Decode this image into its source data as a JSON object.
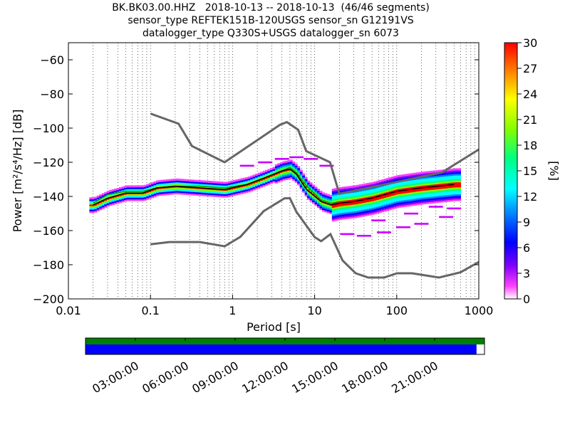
{
  "title": {
    "line1": "BK.BK03.00.HHZ   2018-10-13 -- 2018-10-13  (46/46 segments)",
    "line2": "sensor_type REFTEK151B-120USGS sensor_sn G12191VS",
    "line3": "datalogger_type Q330S+USGS datalogger_sn 6073"
  },
  "chart_data": {
    "type": "heatmap",
    "xlabel": "Period [s]",
    "ylabel": "Power [m²/s⁴/Hz] [dB]",
    "x_scale": "log",
    "xlim": [
      0.01,
      1000
    ],
    "ylim": [
      -200,
      -50
    ],
    "x_ticks": [
      {
        "value": 0.01,
        "label": "0.01"
      },
      {
        "value": 0.1,
        "label": "0.1"
      },
      {
        "value": 1,
        "label": "1"
      },
      {
        "value": 10,
        "label": "10"
      },
      {
        "value": 100,
        "label": "100"
      },
      {
        "value": 1000,
        "label": "1000"
      }
    ],
    "y_ticks": [
      {
        "value": -60,
        "label": "−60"
      },
      {
        "value": -80,
        "label": "−80"
      },
      {
        "value": -100,
        "label": "−100"
      },
      {
        "value": -120,
        "label": "−120"
      },
      {
        "value": -140,
        "label": "−140"
      },
      {
        "value": -160,
        "label": "−160"
      },
      {
        "value": -180,
        "label": "−180"
      },
      {
        "value": -200,
        "label": "−200"
      }
    ],
    "grid": "dotted-vertical",
    "colorbar": {
      "label": "[%]",
      "range": [
        0,
        30
      ],
      "ticks": [
        "0",
        "3",
        "6",
        "9",
        "12",
        "15",
        "18",
        "21",
        "24",
        "27",
        "30"
      ],
      "colormap": "pqlx"
    },
    "noise_model_color": "#666666",
    "nhnm": {
      "x": [
        0.1,
        0.22,
        0.32,
        0.8,
        3.8,
        4.6,
        6.3,
        7.9,
        15.4,
        20,
        354.8,
        1000
      ],
      "y": [
        -91.5,
        -97.4,
        -110.5,
        -120,
        -98,
        -96.5,
        -101,
        -113.5,
        -120,
        -138.5,
        -126,
        -112.5
      ]
    },
    "nlnm": {
      "x": [
        0.1,
        0.17,
        0.4,
        0.8,
        1.24,
        2.4,
        4.3,
        5.0,
        6.0,
        10.0,
        12.0,
        15.6,
        21.9,
        31.6,
        45.0,
        70.0,
        101.0,
        154.0,
        328.0,
        600.0,
        1000.0
      ],
      "y": [
        -168,
        -166.7,
        -166.7,
        -169.2,
        -163.7,
        -148.6,
        -141.1,
        -141.1,
        -149,
        -163.8,
        -166.2,
        -162.1,
        -177.5,
        -185,
        -187.5,
        -187.5,
        -185,
        -185,
        -187.5,
        -184.4,
        -178.4
      ]
    },
    "psd_mode": {
      "color": "#000000",
      "x": [
        0.02,
        0.03,
        0.05,
        0.08,
        0.12,
        0.2,
        0.4,
        0.8,
        1.5,
        2.5,
        4,
        5,
        6,
        8,
        12,
        16,
        20,
        30,
        50,
        100,
        200,
        500
      ],
      "y": [
        -145,
        -141,
        -138,
        -138,
        -135,
        -134,
        -135,
        -136,
        -133,
        -129,
        -125,
        -124,
        -127,
        -136,
        -143,
        -145,
        -144,
        -143,
        -141,
        -137,
        -135,
        -133
      ]
    },
    "psd_mean": {
      "color": "#00a000",
      "x": [
        0.02,
        0.03,
        0.05,
        0.08,
        0.12,
        0.2,
        0.4,
        0.8,
        1.5,
        2.5,
        4,
        5,
        6,
        8,
        12,
        16,
        20
      ],
      "y": [
        -144,
        -139,
        -137,
        -137,
        -135,
        -134,
        -134,
        -135,
        -133,
        -129,
        -125,
        -123,
        -126,
        -134,
        -142,
        -144,
        -143
      ]
    }
  },
  "timeline": {
    "data_coverage_fraction": 0.98,
    "labels": [
      "03:00:00",
      "06:00:00",
      "09:00:00",
      "12:00:00",
      "15:00:00",
      "18:00:00",
      "21:00:00"
    ],
    "hours": [
      3,
      6,
      9,
      12,
      15,
      18,
      21
    ],
    "span_hours": 24,
    "colors": {
      "top_bar": "#008000",
      "coverage": "#0000ff"
    }
  }
}
